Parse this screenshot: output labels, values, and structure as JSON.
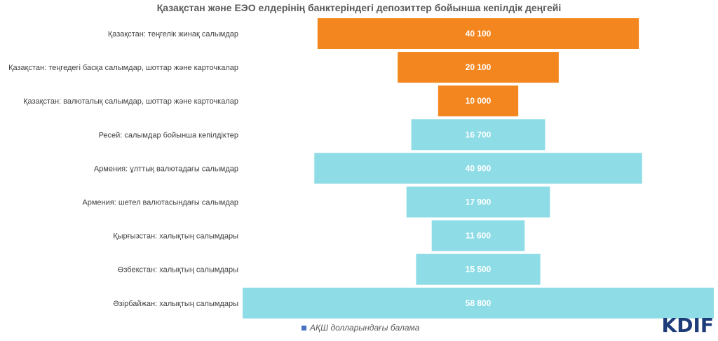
{
  "chart_data": {
    "type": "bar",
    "title": "Қазақстан және ЕЭО елдерінің банктеріндегі депозиттер бойынша кепілдік деңгейі",
    "categories": [
      "Қазақстан: теңгелік жинақ салымдар",
      "Қазақстан: теңгедегі басқа салымдар, шоттар және карточкалар",
      "Қазақстан: валюталық салымдар, шоттар және карточкалар",
      "Ресей: салымдар бойынша кепілдіктер",
      "Армения: ұлттық валютадағы салымдар",
      "Армения: шетел валютасындағы салымдар",
      "Қырғызстан: халықтың салымдары",
      "Өзбекстан: халықтың салымдары",
      "Әзірбайжан: халықтың салымдары"
    ],
    "values": [
      40100,
      20100,
      10000,
      16700,
      40900,
      17900,
      11600,
      15500,
      58800
    ],
    "value_labels": [
      "40 100",
      "20 100",
      "10 000",
      "16 700",
      "40 900",
      "17 900",
      "11 600",
      "15 500",
      "58 800"
    ],
    "colors": [
      "#f4861f",
      "#f4861f",
      "#f4861f",
      "#8ddce6",
      "#8ddce6",
      "#8ddce6",
      "#8ddce6",
      "#8ddce6",
      "#8ddce6"
    ],
    "legend": {
      "label": "АҚШ долларындағы балама",
      "color": "#4472c4",
      "position": "bottom"
    },
    "xlabel": "",
    "ylabel": "",
    "grid": false
  },
  "logo": "KDIF"
}
